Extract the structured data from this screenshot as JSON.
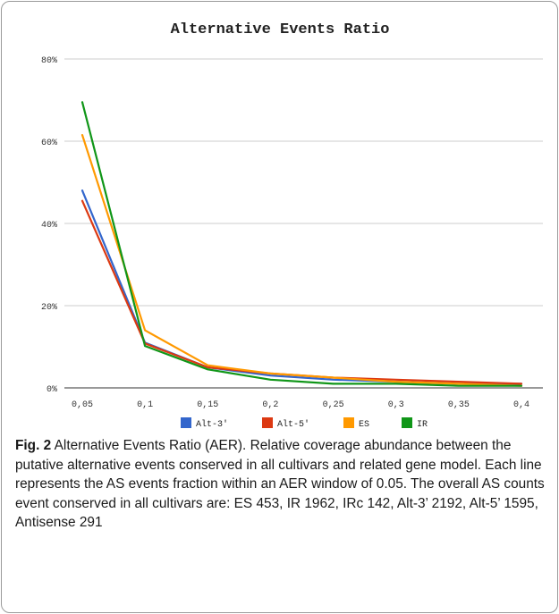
{
  "caption": {
    "label": "Fig. 2",
    "text": "Alternative Events Ratio (AER). Relative coverage abundance between the putative alternative events conserved in all cultivars and related gene model. Each line represents the AS events fraction within an AER window of 0.05. The overall AS counts event conserved in all cultivars are: ES 453, IR 1962, IRc 142, Alt-3’ 2192, Alt-5’ 1595, Antisense 291"
  },
  "chart_data": {
    "type": "line",
    "title": "Alternative Events Ratio",
    "xlabel": "",
    "ylabel": "",
    "categories": [
      "0,05",
      "0,1",
      "0,15",
      "0,2",
      "0,25",
      "0,3",
      "0,35",
      "0,4"
    ],
    "ylim": [
      0,
      80
    ],
    "yticks": [
      0,
      20,
      40,
      60,
      80
    ],
    "ytick_labels": [
      "0%",
      "20%",
      "40%",
      "60%",
      "80%"
    ],
    "grid": true,
    "legend_position": "bottom",
    "series": [
      {
        "name": "Alt-3'",
        "color": "#3366cc",
        "values": [
          48,
          11,
          5,
          3,
          2,
          1.5,
          1,
          1
        ]
      },
      {
        "name": "Alt-5'",
        "color": "#dc3912",
        "values": [
          45.5,
          10.8,
          5,
          3.5,
          2.5,
          2,
          1.5,
          1
        ]
      },
      {
        "name": "ES",
        "color": "#ff9900",
        "values": [
          61.5,
          14,
          5.5,
          3.5,
          2.5,
          1.5,
          1,
          0.5
        ]
      },
      {
        "name": "IR",
        "color": "#109618",
        "values": [
          69.5,
          10.2,
          4.5,
          2,
          1,
          1,
          0.5,
          0.5
        ]
      }
    ]
  }
}
